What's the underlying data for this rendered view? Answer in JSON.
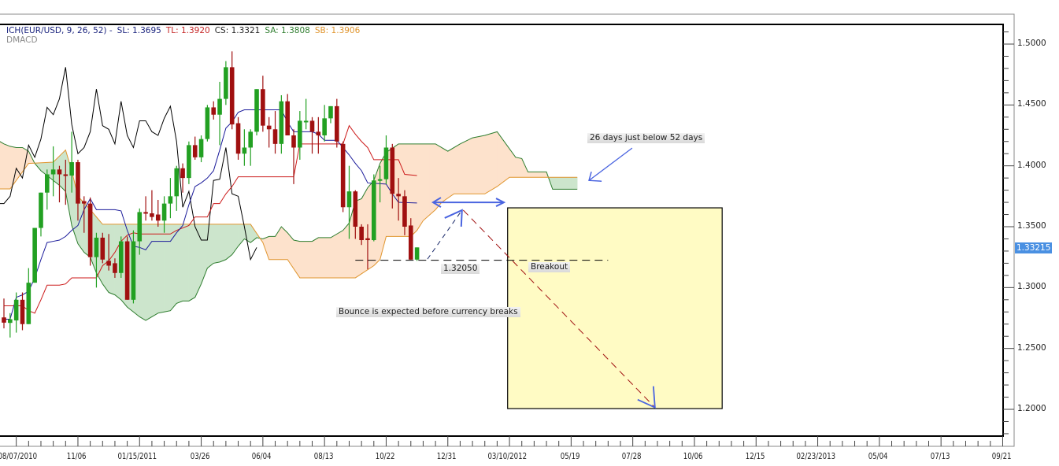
{
  "legend": {
    "indicator": "ICH(EUR/USD, 9, 26, 52) -",
    "sl": "SL: 1.3695",
    "tl": "TL: 1.3920",
    "cs": "CS: 1.3321",
    "sa": "SA: 1.3808",
    "sb": "SB: 1.3906",
    "second_indicator": "DMACD"
  },
  "colors": {
    "bull_candle": "#22a022",
    "bear_candle": "#a01010",
    "tenkan": "#1a1a9a",
    "kijun": "#cc1a1a",
    "chikou": "#000000",
    "senkou_a": "#2e7d2e",
    "senkou_b": "#e0952e",
    "cloud_a_above": "#fde2cc",
    "cloud_b_above": "#cce5cc",
    "target_box": "#fffbc4",
    "annotation_arrow": "#4a64e0",
    "price_tag": "#4a90e2"
  },
  "chart_data": {
    "type": "candlestick",
    "symbol": "EUR/USD",
    "y_range": [
      1.175,
      1.52
    ],
    "y_ticks": [
      "1.5000",
      "1.4500",
      "1.4000",
      "1.3500",
      "1.3000",
      "1.2500",
      "1.2000"
    ],
    "x_ticks": [
      "08/07/2010",
      "11/06",
      "01/15/2011",
      "03/26",
      "06/04",
      "08/13",
      "10/22",
      "12/31",
      "03/10/2012",
      "05/19",
      "07/28",
      "10/06",
      "12/15",
      "02/23/2013",
      "05/04",
      "07/13",
      "09/21"
    ],
    "current_price": "1.33215",
    "candles_ohlc": [
      [
        1.2755,
        1.291,
        1.2665,
        1.2712
      ],
      [
        1.271,
        1.279,
        1.259,
        1.274
      ],
      [
        1.273,
        1.296,
        1.263,
        1.29
      ],
      [
        1.29,
        1.296,
        1.265,
        1.27
      ],
      [
        1.27,
        1.316,
        1.27,
        1.304
      ],
      [
        1.304,
        1.349,
        1.304,
        1.349
      ],
      [
        1.349,
        1.378,
        1.342,
        1.378
      ],
      [
        1.378,
        1.397,
        1.364,
        1.393
      ],
      [
        1.393,
        1.416,
        1.375,
        1.397
      ],
      [
        1.397,
        1.4,
        1.37,
        1.393
      ],
      [
        1.393,
        1.405,
        1.368,
        1.392
      ],
      [
        1.392,
        1.428,
        1.378,
        1.403
      ],
      [
        1.403,
        1.405,
        1.355,
        1.369
      ],
      [
        1.371,
        1.375,
        1.345,
        1.369
      ],
      [
        1.369,
        1.374,
        1.318,
        1.325
      ],
      [
        1.325,
        1.345,
        1.3,
        1.341
      ],
      [
        1.341,
        1.345,
        1.32,
        1.323
      ],
      [
        1.322,
        1.344,
        1.314,
        1.318
      ],
      [
        1.32,
        1.324,
        1.308,
        1.312
      ],
      [
        1.312,
        1.342,
        1.308,
        1.338
      ],
      [
        1.338,
        1.342,
        1.29,
        1.29
      ],
      [
        1.29,
        1.347,
        1.287,
        1.338
      ],
      [
        1.338,
        1.365,
        1.327,
        1.362
      ],
      [
        1.362,
        1.375,
        1.355,
        1.361
      ],
      [
        1.361,
        1.38,
        1.355,
        1.358
      ],
      [
        1.36,
        1.372,
        1.35,
        1.355
      ],
      [
        1.355,
        1.375,
        1.345,
        1.369
      ],
      [
        1.369,
        1.39,
        1.357,
        1.375
      ],
      [
        1.375,
        1.4,
        1.363,
        1.398
      ],
      [
        1.398,
        1.402,
        1.378,
        1.39
      ],
      [
        1.39,
        1.42,
        1.385,
        1.417
      ],
      [
        1.417,
        1.424,
        1.405,
        1.407
      ],
      [
        1.407,
        1.425,
        1.403,
        1.422
      ],
      [
        1.422,
        1.45,
        1.42,
        1.448
      ],
      [
        1.448,
        1.453,
        1.438,
        1.442
      ],
      [
        1.442,
        1.469,
        1.417,
        1.455
      ],
      [
        1.455,
        1.486,
        1.45,
        1.481
      ],
      [
        1.481,
        1.494,
        1.43,
        1.434
      ],
      [
        1.435,
        1.44,
        1.405,
        1.41
      ],
      [
        1.41,
        1.43,
        1.4,
        1.415
      ],
      [
        1.415,
        1.43,
        1.4,
        1.428
      ],
      [
        1.428,
        1.463,
        1.425,
        1.463
      ],
      [
        1.463,
        1.474,
        1.428,
        1.433
      ],
      [
        1.433,
        1.44,
        1.415,
        1.43
      ],
      [
        1.43,
        1.445,
        1.41,
        1.418
      ],
      [
        1.418,
        1.458,
        1.41,
        1.453
      ],
      [
        1.453,
        1.459,
        1.425,
        1.425
      ],
      [
        1.425,
        1.43,
        1.385,
        1.415
      ],
      [
        1.415,
        1.445,
        1.405,
        1.437
      ],
      [
        1.436,
        1.455,
        1.43,
        1.437
      ],
      [
        1.437,
        1.44,
        1.41,
        1.428
      ],
      [
        1.428,
        1.44,
        1.41,
        1.425
      ],
      [
        1.425,
        1.45,
        1.42,
        1.439
      ],
      [
        1.439,
        1.449,
        1.435,
        1.449
      ],
      [
        1.449,
        1.455,
        1.415,
        1.42
      ],
      [
        1.418,
        1.42,
        1.362,
        1.366
      ],
      [
        1.366,
        1.4,
        1.34,
        1.379
      ],
      [
        1.379,
        1.38,
        1.34,
        1.35
      ],
      [
        1.35,
        1.352,
        1.335,
        1.339
      ],
      [
        1.3405,
        1.352,
        1.315,
        1.339
      ],
      [
        1.339,
        1.393,
        1.338,
        1.388
      ],
      [
        1.388,
        1.4,
        1.37,
        1.389
      ],
      [
        1.389,
        1.425,
        1.385,
        1.415
      ],
      [
        1.415,
        1.418,
        1.365,
        1.377
      ],
      [
        1.377,
        1.39,
        1.355,
        1.375
      ],
      [
        1.375,
        1.38,
        1.343,
        1.35
      ],
      [
        1.351,
        1.357,
        1.323,
        1.323
      ],
      [
        1.323,
        1.333,
        1.322,
        1.333
      ]
    ],
    "tenkan_sen": [
      [
        0,
        1.274
      ],
      [
        1,
        1.274
      ],
      [
        2,
        1.292
      ],
      [
        3,
        1.294
      ],
      [
        4,
        1.297
      ],
      [
        5,
        1.308
      ],
      [
        6,
        1.323
      ],
      [
        7,
        1.337
      ],
      [
        8,
        1.338
      ],
      [
        9,
        1.339
      ],
      [
        10,
        1.342
      ],
      [
        11,
        1.347
      ],
      [
        12,
        1.351
      ],
      [
        13,
        1.364
      ],
      [
        14,
        1.373
      ],
      [
        15,
        1.364
      ],
      [
        18,
        1.364
      ],
      [
        19,
        1.363
      ],
      [
        20,
        1.347
      ],
      [
        21,
        1.334
      ],
      [
        22,
        1.333
      ],
      [
        23,
        1.331
      ],
      [
        24,
        1.338
      ],
      [
        27,
        1.338
      ],
      [
        28,
        1.345
      ],
      [
        29,
        1.351
      ],
      [
        30,
        1.368
      ],
      [
        31,
        1.383
      ],
      [
        32,
        1.386
      ],
      [
        33,
        1.39
      ],
      [
        34,
        1.396
      ],
      [
        35,
        1.413
      ],
      [
        36,
        1.431
      ],
      [
        37,
        1.436
      ],
      [
        38,
        1.444
      ],
      [
        39,
        1.446
      ],
      [
        45,
        1.446
      ],
      [
        46,
        1.436
      ],
      [
        47,
        1.428
      ],
      [
        50,
        1.428
      ],
      [
        51,
        1.426
      ],
      [
        52,
        1.421
      ],
      [
        54,
        1.421
      ],
      [
        55,
        1.415
      ],
      [
        56,
        1.409
      ],
      [
        57,
        1.402
      ],
      [
        58,
        1.396
      ],
      [
        59,
        1.386
      ],
      [
        62,
        1.385
      ],
      [
        63,
        1.377
      ],
      [
        64,
        1.37
      ],
      [
        67,
        1.3695
      ]
    ],
    "kijun_sen": [
      [
        0,
        1.285
      ],
      [
        3,
        1.285
      ],
      [
        4,
        1.281
      ],
      [
        5,
        1.279
      ],
      [
        6,
        1.29
      ],
      [
        7,
        1.302
      ],
      [
        9,
        1.302
      ],
      [
        10,
        1.303
      ],
      [
        11,
        1.308
      ],
      [
        15,
        1.308
      ],
      [
        16,
        1.318
      ],
      [
        17,
        1.322
      ],
      [
        18,
        1.329
      ],
      [
        19,
        1.338
      ],
      [
        20,
        1.343
      ],
      [
        21,
        1.345
      ],
      [
        22,
        1.344
      ],
      [
        27,
        1.344
      ],
      [
        28,
        1.347
      ],
      [
        29,
        1.349
      ],
      [
        30,
        1.351
      ],
      [
        31,
        1.358
      ],
      [
        33,
        1.358
      ],
      [
        34,
        1.369
      ],
      [
        35,
        1.369
      ],
      [
        36,
        1.377
      ],
      [
        37,
        1.383
      ],
      [
        38,
        1.391
      ],
      [
        47,
        1.391
      ],
      [
        48,
        1.418
      ],
      [
        55,
        1.418
      ],
      [
        56,
        1.433
      ],
      [
        57,
        1.426
      ],
      [
        58,
        1.42
      ],
      [
        59,
        1.415
      ],
      [
        60,
        1.405
      ],
      [
        64,
        1.405
      ],
      [
        65,
        1.393
      ],
      [
        67,
        1.392
      ]
    ],
    "senkou_span_a": [
      [
        -1,
        1.421
      ],
      [
        0,
        1.418
      ],
      [
        1,
        1.416
      ],
      [
        2,
        1.415
      ],
      [
        3,
        1.415
      ],
      [
        4,
        1.412
      ],
      [
        5,
        1.402
      ],
      [
        6,
        1.396
      ],
      [
        7,
        1.392
      ],
      [
        8,
        1.388
      ],
      [
        9,
        1.384
      ],
      [
        10,
        1.379
      ],
      [
        11,
        1.351
      ],
      [
        12,
        1.336
      ],
      [
        13,
        1.329
      ],
      [
        14,
        1.325
      ],
      [
        15,
        1.312
      ],
      [
        16,
        1.303
      ],
      [
        17,
        1.296
      ],
      [
        18,
        1.294
      ],
      [
        19,
        1.29
      ],
      [
        20,
        1.284
      ],
      [
        21,
        1.28
      ],
      [
        22,
        1.276
      ],
      [
        23,
        1.273
      ],
      [
        24,
        1.276
      ],
      [
        25,
        1.279
      ],
      [
        26,
        1.28
      ],
      [
        27,
        1.281
      ],
      [
        28,
        1.287
      ],
      [
        29,
        1.289
      ],
      [
        30,
        1.289
      ],
      [
        31,
        1.292
      ],
      [
        32,
        1.303
      ],
      [
        33,
        1.316
      ],
      [
        34,
        1.32
      ],
      [
        35,
        1.321
      ],
      [
        36,
        1.323
      ],
      [
        37,
        1.327
      ],
      [
        38,
        1.334
      ],
      [
        39,
        1.34
      ],
      [
        40,
        1.337
      ],
      [
        41,
        1.341
      ],
      [
        42,
        1.34
      ],
      [
        43,
        1.342
      ],
      [
        44,
        1.342
      ],
      [
        45,
        1.35
      ],
      [
        46,
        1.345
      ],
      [
        47,
        1.339
      ],
      [
        48,
        1.338
      ],
      [
        50,
        1.338
      ],
      [
        51,
        1.341
      ],
      [
        53,
        1.341
      ],
      [
        55,
        1.347
      ],
      [
        56,
        1.353
      ],
      [
        57,
        1.371
      ],
      [
        58,
        1.373
      ],
      [
        59,
        1.382
      ],
      [
        60,
        1.388
      ],
      [
        61,
        1.402
      ],
      [
        62,
        1.411
      ],
      [
        64,
        1.418
      ],
      [
        70,
        1.418
      ],
      [
        72,
        1.412
      ],
      [
        74,
        1.418
      ],
      [
        76,
        1.423
      ],
      [
        78,
        1.425
      ],
      [
        80,
        1.428
      ],
      [
        83,
        1.407
      ],
      [
        84,
        1.406
      ],
      [
        85,
        1.395
      ],
      [
        88,
        1.395
      ],
      [
        89,
        1.3808
      ],
      [
        93,
        1.3808
      ]
    ],
    "senkou_span_b": [
      [
        -1,
        1.381
      ],
      [
        1,
        1.381
      ],
      [
        4,
        1.402
      ],
      [
        8,
        1.403
      ],
      [
        10,
        1.413
      ],
      [
        11,
        1.396
      ],
      [
        12,
        1.375
      ],
      [
        14,
        1.364
      ],
      [
        16,
        1.352
      ],
      [
        40,
        1.352
      ],
      [
        42,
        1.337
      ],
      [
        43,
        1.323
      ],
      [
        46,
        1.323
      ],
      [
        48,
        1.308
      ],
      [
        57,
        1.308
      ],
      [
        60,
        1.318
      ],
      [
        61,
        1.323
      ],
      [
        62,
        1.342
      ],
      [
        66,
        1.342
      ],
      [
        67,
        1.347
      ],
      [
        68,
        1.355
      ],
      [
        70,
        1.364
      ],
      [
        71,
        1.37
      ],
      [
        73,
        1.377
      ],
      [
        78,
        1.377
      ],
      [
        80,
        1.383
      ],
      [
        82,
        1.3906
      ],
      [
        93,
        1.3906
      ]
    ],
    "chikou_shift": 26,
    "annotations": {
      "support_level": {
        "price": 1.3205,
        "from_bar": 57,
        "to_bar": 98
      },
      "double_arrow": {
        "price": 1.37,
        "from_bar": 69.6,
        "to_bar": 81.1
      },
      "bounce_arrow": {
        "from": [
          68.7,
          1.3234
        ],
        "to": [
          74.3,
          1.3636
        ]
      },
      "drop_arrow": {
        "from": [
          74.5,
          1.3636
        ],
        "to": [
          105.6,
          1.2015
        ]
      },
      "target_box": {
        "from_bar": 81.7,
        "to_bar": 116.5,
        "top": 1.3655,
        "bottom": 1.2006
      },
      "note_arrow": {
        "from": [
          101.9,
          1.4146
        ],
        "to": [
          94.9,
          1.388
        ]
      },
      "note_26_52": "26 days just below 52 days",
      "support_label": "1.32050",
      "breakout_label": "Breakout",
      "bounce_label": "Bounce is expected before currency breaks"
    }
  }
}
